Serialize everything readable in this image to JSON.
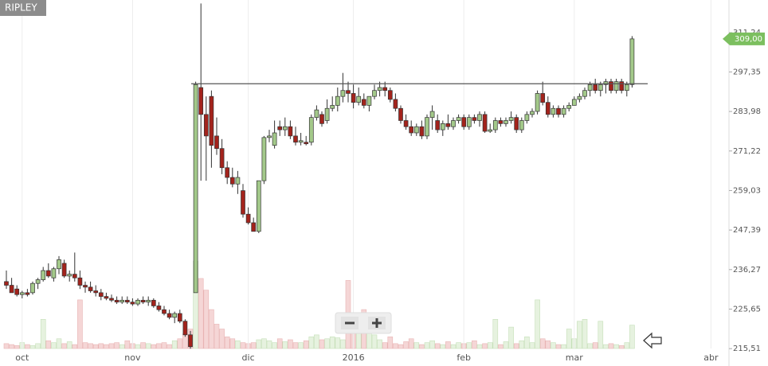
{
  "chart_data": {
    "type": "candlestick",
    "title": "RIPLEY",
    "ohlc": [
      [
        233,
        236,
        231,
        232
      ],
      [
        232,
        234,
        230,
        230
      ],
      [
        231,
        232,
        229,
        229.5
      ],
      [
        229.5,
        230.5,
        228.5,
        230
      ],
      [
        230,
        231,
        229,
        229.5
      ],
      [
        230,
        233,
        229.5,
        232.5
      ],
      [
        232.5,
        234,
        231,
        233.5
      ],
      [
        233.5,
        237,
        233,
        236
      ],
      [
        236,
        238,
        234,
        234.5
      ],
      [
        234,
        237,
        233,
        236.5
      ],
      [
        236.5,
        240,
        235,
        239
      ],
      [
        238,
        239,
        234,
        234.5
      ],
      [
        234.5,
        236,
        233,
        235
      ],
      [
        235,
        241,
        233,
        234
      ],
      [
        234,
        236,
        231,
        232
      ],
      [
        232,
        233,
        230,
        231.5
      ],
      [
        231.5,
        233,
        230,
        230.5
      ],
      [
        230.5,
        232,
        229,
        230
      ],
      [
        230,
        231,
        228,
        229
      ],
      [
        229,
        230,
        228,
        228.5
      ],
      [
        228.5,
        229.5,
        227.5,
        228
      ],
      [
        228,
        229,
        227,
        227.5
      ],
      [
        227.5,
        229,
        227,
        228
      ],
      [
        228,
        229,
        227,
        227.5
      ],
      [
        227.5,
        228.5,
        226.5,
        227
      ],
      [
        227,
        228.5,
        226.5,
        228
      ],
      [
        228,
        229,
        227,
        227.5
      ],
      [
        227.5,
        229,
        226.5,
        228
      ],
      [
        228,
        228.5,
        226,
        226.5
      ],
      [
        226.5,
        227.5,
        225,
        225.5
      ],
      [
        225.5,
        226.5,
        224,
        224.5
      ],
      [
        224.5,
        225.5,
        223,
        223.5
      ],
      [
        223.5,
        225,
        222,
        224.5
      ],
      [
        224.5,
        225.5,
        222,
        222.5
      ],
      [
        222.5,
        223,
        218.5,
        219
      ],
      [
        219,
        220,
        215.5,
        216
      ],
      [
        230,
        294,
        230,
        293
      ],
      [
        292,
        322,
        262,
        283
      ],
      [
        283,
        289,
        262,
        276
      ],
      [
        289,
        291,
        266,
        273
      ],
      [
        276,
        282,
        270,
        272
      ],
      [
        272,
        275,
        264,
        266
      ],
      [
        266,
        268,
        261,
        263
      ],
      [
        263,
        266,
        260,
        261
      ],
      [
        261,
        265,
        258,
        263
      ],
      [
        259,
        261,
        251,
        252
      ],
      [
        252,
        254,
        249,
        249.5
      ],
      [
        249.5,
        251,
        247,
        247
      ],
      [
        247,
        262,
        246.5,
        262
      ],
      [
        262,
        276,
        261,
        275.5
      ],
      [
        275.5,
        278,
        274,
        276
      ],
      [
        273,
        281,
        272,
        277
      ],
      [
        279,
        281,
        276,
        278
      ],
      [
        278,
        282,
        276,
        279
      ],
      [
        279,
        281,
        275,
        276
      ],
      [
        276,
        279,
        273,
        274
      ],
      [
        274,
        277,
        273,
        274.5
      ],
      [
        274,
        276,
        273,
        273.5
      ],
      [
        274,
        283,
        273,
        282
      ],
      [
        282,
        286,
        281,
        284.5
      ],
      [
        283,
        284,
        279,
        280
      ],
      [
        281,
        288,
        280,
        285
      ],
      [
        285,
        289,
        284,
        286
      ],
      [
        286,
        292,
        284,
        289
      ],
      [
        289,
        297,
        287,
        291
      ],
      [
        291,
        294,
        287,
        290
      ],
      [
        290,
        293,
        285,
        287
      ],
      [
        287,
        292,
        286,
        289
      ],
      [
        288,
        290,
        285,
        286
      ],
      [
        286,
        289,
        284,
        289
      ],
      [
        289,
        293,
        288,
        291
      ],
      [
        291,
        294,
        289,
        292
      ],
      [
        292,
        294,
        289,
        291
      ],
      [
        291,
        292,
        287,
        288
      ],
      [
        288,
        290,
        284,
        285
      ],
      [
        285,
        286,
        280,
        281
      ],
      [
        281,
        283,
        278,
        279
      ],
      [
        279,
        281,
        276,
        277
      ],
      [
        277,
        280,
        276,
        279
      ],
      [
        279,
        281,
        275,
        276
      ],
      [
        276,
        283,
        275,
        282
      ],
      [
        282,
        286,
        278,
        284
      ],
      [
        281,
        283,
        277,
        278
      ],
      [
        278,
        281,
        276,
        280
      ],
      [
        280,
        283,
        278,
        279
      ],
      [
        279,
        282,
        278,
        281
      ],
      [
        281,
        283,
        280,
        282
      ],
      [
        282,
        283,
        278,
        279
      ],
      [
        279,
        283,
        278,
        282
      ],
      [
        282,
        283,
        280,
        281
      ],
      [
        281,
        284,
        279,
        283
      ],
      [
        283,
        284,
        277,
        277.5
      ],
      [
        277.5,
        280,
        277,
        278
      ],
      [
        278,
        282,
        277,
        281
      ],
      [
        281,
        282,
        279,
        280
      ],
      [
        280,
        282,
        279,
        281
      ],
      [
        281,
        284,
        280,
        282
      ],
      [
        282,
        283,
        277,
        278
      ],
      [
        278,
        282,
        277,
        281
      ],
      [
        281,
        284,
        280,
        283
      ],
      [
        283,
        285,
        282,
        284
      ],
      [
        284,
        291,
        283,
        290
      ],
      [
        290,
        294,
        286,
        287
      ],
      [
        287,
        289,
        282,
        283
      ],
      [
        283,
        286,
        282,
        285
      ],
      [
        285,
        286,
        282,
        283
      ],
      [
        283,
        286,
        282,
        285
      ],
      [
        285,
        287,
        284,
        286
      ],
      [
        286,
        289,
        286,
        288
      ],
      [
        288,
        290,
        287,
        289
      ],
      [
        289,
        292,
        288,
        291
      ],
      [
        291,
        294,
        289,
        293
      ],
      [
        293,
        295,
        290,
        291
      ],
      [
        291,
        294,
        289,
        293
      ],
      [
        293,
        295,
        290,
        294
      ],
      [
        294,
        295,
        290,
        291
      ],
      [
        291,
        295,
        290,
        294
      ],
      [
        294,
        295,
        290,
        291
      ],
      [
        291,
        294,
        289,
        293
      ],
      [
        293,
        310,
        292,
        309
      ]
    ],
    "volume": [
      5,
      4,
      3,
      6,
      4,
      3,
      5,
      30,
      8,
      6,
      10,
      5,
      7,
      4,
      50,
      6,
      5,
      4,
      5,
      4,
      5,
      6,
      4,
      8,
      5,
      4,
      6,
      5,
      4,
      5,
      6,
      4,
      8,
      10,
      15,
      20,
      90,
      72,
      60,
      40,
      25,
      20,
      12,
      10,
      8,
      6,
      5,
      6,
      9,
      10,
      8,
      6,
      10,
      7,
      9,
      6,
      6,
      8,
      12,
      14,
      9,
      10,
      12,
      11,
      9,
      70,
      20,
      25,
      40,
      16,
      14,
      9,
      6,
      12,
      5,
      4,
      7,
      10,
      6,
      4,
      6,
      8,
      5,
      4,
      7,
      4,
      6,
      5,
      6,
      8,
      4,
      5,
      6,
      30,
      4,
      7,
      22,
      5,
      8,
      12,
      6,
      50,
      10,
      8,
      6,
      4,
      4,
      20,
      10,
      28,
      30,
      5,
      6,
      28,
      4,
      5,
      4,
      3,
      6,
      24
    ],
    "up_color": "#a3c98a",
    "down_color": "#a3231c",
    "ylim": [
      211.2,
      323.3
    ],
    "log_scale": true,
    "yticks": [
      {
        "value": 215.51,
        "label": "215,51"
      },
      {
        "value": 225.65,
        "label": "225,65"
      },
      {
        "value": 236.27,
        "label": "236,27"
      },
      {
        "value": 247.39,
        "label": "247,39"
      },
      {
        "value": 259.03,
        "label": "259,03"
      },
      {
        "value": 271.22,
        "label": "271,22"
      },
      {
        "value": 283.98,
        "label": "283,98"
      },
      {
        "value": 297.35,
        "label": "297,35"
      },
      {
        "value": 311.24,
        "label": "311,24"
      }
    ],
    "xticks": [
      {
        "value": 3,
        "label": "oct"
      },
      {
        "value": 24,
        "label": "nov"
      },
      {
        "value": 46,
        "label": "dic"
      },
      {
        "value": 66,
        "label": "2016"
      },
      {
        "value": 87,
        "label": "feb"
      },
      {
        "value": 108,
        "label": "mar"
      },
      {
        "value": 134,
        "label": "abr"
      }
    ],
    "reference_line": 293.3,
    "last_price": {
      "value": 309,
      "label": "309,00"
    }
  }
}
